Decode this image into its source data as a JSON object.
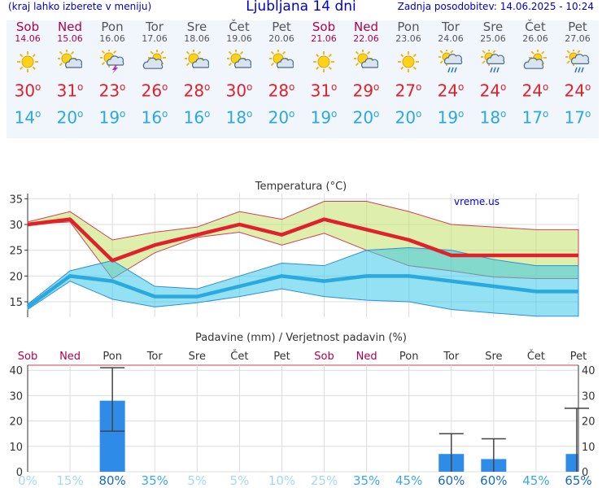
{
  "header": {
    "left": "(kraj lahko izberete v meniju)",
    "title": "Ljubljana 14 dni",
    "updated": "Zadnja posodobitev: 14.06.2025 - 10:24"
  },
  "days": [
    {
      "name": "Sob",
      "date": "14.06",
      "weekend": true,
      "icon": "sun-icon",
      "tmax": "30",
      "tmin": "14"
    },
    {
      "name": "Ned",
      "date": "15.06",
      "weekend": true,
      "icon": "sun-cloud-icon",
      "tmax": "31",
      "tmin": "20"
    },
    {
      "name": "Pon",
      "date": "16.06",
      "weekend": false,
      "icon": "sun-cloud-storm-icon",
      "tmax": "23",
      "tmin": "19"
    },
    {
      "name": "Tor",
      "date": "17.06",
      "weekend": false,
      "icon": "cloud-sun-icon",
      "tmax": "26",
      "tmin": "16"
    },
    {
      "name": "Sre",
      "date": "18.06",
      "weekend": false,
      "icon": "sun-cloud-icon",
      "tmax": "28",
      "tmin": "16"
    },
    {
      "name": "Čet",
      "date": "19.06",
      "weekend": false,
      "icon": "sun-cloud-icon",
      "tmax": "30",
      "tmin": "18"
    },
    {
      "name": "Pet",
      "date": "20.06",
      "weekend": false,
      "icon": "sun-cloud-icon",
      "tmax": "28",
      "tmin": "20"
    },
    {
      "name": "Sob",
      "date": "21.06",
      "weekend": true,
      "icon": "sun-icon",
      "tmax": "31",
      "tmin": "19"
    },
    {
      "name": "Ned",
      "date": "22.06",
      "weekend": true,
      "icon": "sun-cloud-icon",
      "tmax": "29",
      "tmin": "20"
    },
    {
      "name": "Pon",
      "date": "23.06",
      "weekend": false,
      "icon": "sun-icon",
      "tmax": "27",
      "tmin": "20"
    },
    {
      "name": "Tor",
      "date": "24.06",
      "weekend": false,
      "icon": "sun-cloud-rain-icon",
      "tmax": "24",
      "tmin": "19"
    },
    {
      "name": "Sre",
      "date": "25.06",
      "weekend": false,
      "icon": "sun-cloud-rain-icon",
      "tmax": "24",
      "tmin": "18"
    },
    {
      "name": "Čet",
      "date": "26.06",
      "weekend": false,
      "icon": "cloud-sun-icon",
      "tmax": "24",
      "tmin": "17"
    },
    {
      "name": "Pet",
      "date": "27.06",
      "weekend": false,
      "icon": "sun-cloud-rain-icon",
      "tmax": "24",
      "tmin": "17"
    }
  ],
  "colors": {
    "weekend": "#b3004c",
    "weekday": "#555555",
    "tmax": "#e0202a",
    "tmin": "#2aa8e0"
  },
  "chart_data": [
    {
      "type": "line",
      "title": "Temperatura (°C)",
      "watermark": "vreme.us",
      "ylim": [
        12,
        36
      ],
      "yticks": [
        15,
        20,
        25,
        30,
        35
      ],
      "series": [
        {
          "values": [
            30,
            31,
            23,
            26,
            28,
            30,
            28,
            31,
            29,
            27,
            24,
            24,
            24,
            24
          ]
        },
        {
          "values": [
            14,
            20,
            19,
            16,
            16,
            18,
            20,
            19,
            20,
            20,
            19,
            18,
            17,
            17
          ]
        }
      ],
      "max_range": {
        "low": [
          30,
          30.5,
          19.5,
          24.5,
          27.5,
          28.5,
          26,
          28.3,
          25,
          22,
          21,
          19.8,
          19.5,
          19.5
        ],
        "high": [
          30.5,
          32.5,
          27,
          28.5,
          29.5,
          32.5,
          31,
          34.5,
          34.5,
          32.5,
          30,
          29.5,
          29,
          29
        ]
      },
      "min_range": {
        "low": [
          13.5,
          19,
          15.5,
          14,
          14.8,
          16,
          17.5,
          16,
          15.3,
          15,
          13.5,
          12.8,
          12.2,
          12.2
        ],
        "high": [
          14.5,
          21,
          23,
          18,
          17.5,
          20,
          22.5,
          22,
          25,
          25.5,
          25,
          23.2,
          22,
          22
        ]
      }
    },
    {
      "type": "bar",
      "title": "Padavine (mm) / Verjetnost padavin (%)",
      "days": [
        "Sob",
        "Ned",
        "Pon",
        "Tor",
        "Sre",
        "Čet",
        "Pet",
        "Sob",
        "Ned",
        "Pon",
        "Tor",
        "Sre",
        "Čet",
        "Pet"
      ],
      "weekend": [
        true,
        true,
        false,
        false,
        false,
        false,
        false,
        true,
        true,
        false,
        false,
        false,
        false,
        false
      ],
      "ylim": [
        0,
        42
      ],
      "yticks": [
        0,
        10,
        20,
        30,
        40
      ],
      "values": [
        0,
        0,
        28,
        0,
        0,
        0,
        0,
        0,
        0,
        0,
        7,
        5,
        0,
        7
      ],
      "err_low": [
        0,
        0,
        16,
        0,
        0,
        0,
        0,
        0,
        0,
        0,
        0,
        0,
        0,
        0
      ],
      "err_high": [
        0,
        0,
        41,
        0,
        0,
        0,
        0,
        0,
        0,
        0,
        15,
        13,
        0,
        25
      ],
      "probability": [
        "0%",
        "15%",
        "80%",
        "35%",
        "5%",
        "5%",
        "10%",
        "25%",
        "35%",
        "45%",
        "60%",
        "60%",
        "45%",
        "65%"
      ]
    }
  ]
}
